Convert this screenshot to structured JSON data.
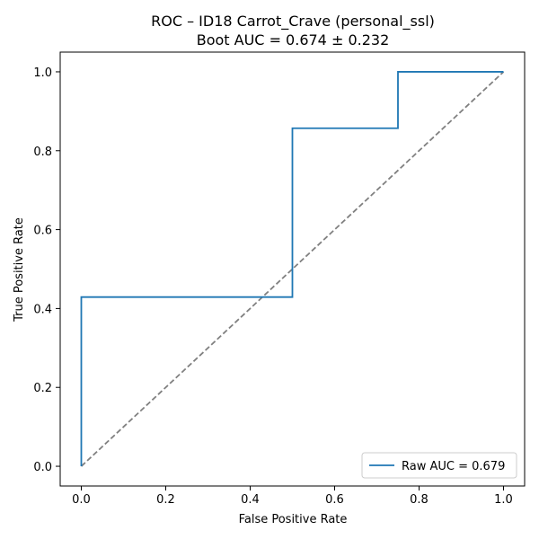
{
  "chart_data": {
    "type": "line",
    "title": "ROC – ID18 Carrot_Crave (personal_ssl)",
    "subtitle": "Boot AUC = 0.674 ± 0.232",
    "xlabel": "False Positive Rate",
    "ylabel": "True Positive Rate",
    "xlim": [
      -0.05,
      1.05
    ],
    "ylim": [
      -0.05,
      1.05
    ],
    "xticks": [
      "0.0",
      "0.2",
      "0.4",
      "0.6",
      "0.8",
      "1.0"
    ],
    "yticks": [
      "0.0",
      "0.2",
      "0.4",
      "0.6",
      "0.8",
      "1.0"
    ],
    "grid": false,
    "legend_position": "lower-right",
    "series": [
      {
        "name": "Raw AUC = 0.679",
        "color": "#1f77b4",
        "style": "solid-step",
        "x": [
          0.0,
          0.0,
          0.5,
          0.5,
          0.75,
          0.75,
          1.0
        ],
        "y": [
          0.0,
          0.429,
          0.429,
          0.857,
          0.857,
          1.0,
          1.0
        ]
      }
    ],
    "reference_line": {
      "color": "#808080",
      "style": "dashed",
      "x": [
        0.0,
        1.0
      ],
      "y": [
        0.0,
        1.0
      ]
    }
  }
}
